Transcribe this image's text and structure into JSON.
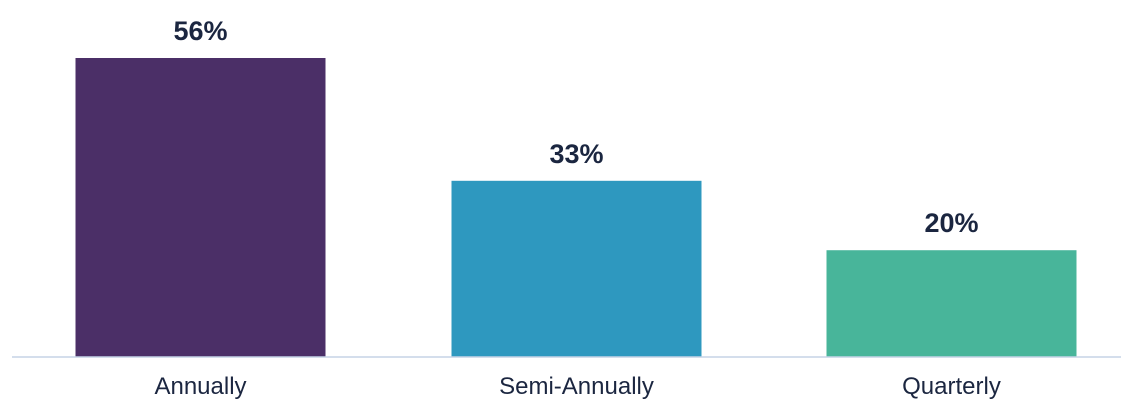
{
  "chart_data": {
    "type": "bar",
    "categories": [
      "Annually",
      "Semi-Annually",
      "Quarterly"
    ],
    "values": [
      56,
      33,
      20
    ],
    "value_labels": [
      "56%",
      "33%",
      "20%"
    ],
    "colors": [
      "#4b2f67",
      "#2e98bf",
      "#48b59a"
    ],
    "axis_color": "#c5d3e6",
    "ylim": [
      0,
      56
    ],
    "grid": false,
    "legend": "none"
  }
}
